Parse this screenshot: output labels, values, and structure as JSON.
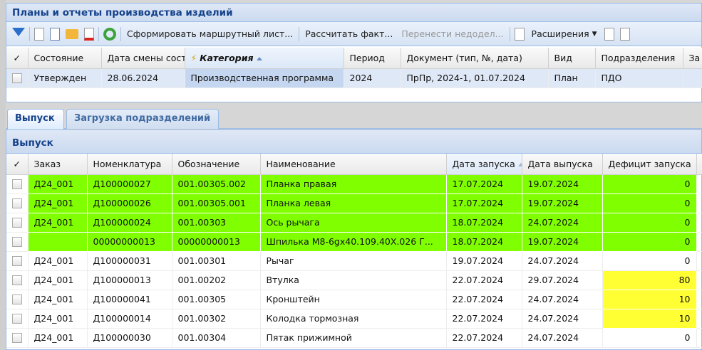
{
  "plans": {
    "title": "Планы и отчеты производства изделий",
    "toolbar": {
      "form_route": "Сформировать маршрутный лист...",
      "calc_fact": "Рассчитать факт...",
      "transfer": "Перенести недодел...",
      "extensions": "Расширения"
    },
    "columns": [
      "Состояние",
      "Дата смены сост",
      "Категория",
      "Период",
      "Документ (тип, №, дата)",
      "Вид",
      "Подразделения",
      "За"
    ],
    "rows": [
      {
        "state": "Утвержден",
        "date": "28.06.2024",
        "category": "Производственная программа",
        "period": "2024",
        "document": "ПрПр, 2024-1, 01.07.2024",
        "kind": "План",
        "dept": "ПДО",
        "extra": ""
      }
    ]
  },
  "tabs": [
    {
      "label": "Выпуск",
      "active": true
    },
    {
      "label": "Загрузка подразделений",
      "active": false
    }
  ],
  "output": {
    "title": "Выпуск",
    "columns": [
      "Заказ",
      "Номенклатура",
      "Обозначение",
      "Наименование",
      "Дата запуска",
      "Дата выпуска",
      "Дефицит запуска"
    ],
    "rows": [
      {
        "order": "Д24_001",
        "nom": "Д100000027",
        "code": "001.00305.002",
        "name": "Планка правая",
        "start": "17.07.2024",
        "release": "19.07.2024",
        "deficit": "0",
        "highlight": "green"
      },
      {
        "order": "Д24_001",
        "nom": "Д100000026",
        "code": "001.00305.001",
        "name": "Планка левая",
        "start": "17.07.2024",
        "release": "19.07.2024",
        "deficit": "0",
        "highlight": "green"
      },
      {
        "order": "Д24_001",
        "nom": "Д100000024",
        "code": "001.00303",
        "name": "Ось рычага",
        "start": "18.07.2024",
        "release": "24.07.2024",
        "deficit": "0",
        "highlight": "green"
      },
      {
        "order": "",
        "nom": "00000000013",
        "code": "00000000013",
        "name": "Шпилька М8-6gx40.109.40Х.026 Г...",
        "start": "18.07.2024",
        "release": "19.07.2024",
        "deficit": "0",
        "highlight": "green"
      },
      {
        "order": "Д24_001",
        "nom": "Д100000031",
        "code": "001.00301",
        "name": "Рычаг",
        "start": "19.07.2024",
        "release": "24.07.2024",
        "deficit": "0",
        "highlight": ""
      },
      {
        "order": "Д24_001",
        "nom": "Д100000013",
        "code": "001.00202",
        "name": "Втулка",
        "start": "22.07.2024",
        "release": "29.07.2024",
        "deficit": "80",
        "highlight": "yellow"
      },
      {
        "order": "Д24_001",
        "nom": "Д100000041",
        "code": "001.00305",
        "name": "Кронштейн",
        "start": "22.07.2024",
        "release": "24.07.2024",
        "deficit": "10",
        "highlight": "yellow"
      },
      {
        "order": "Д24_001",
        "nom": "Д100000014",
        "code": "001.00302",
        "name": "Колодка тормозная",
        "start": "22.07.2024",
        "release": "24.07.2024",
        "deficit": "10",
        "highlight": "yellow"
      },
      {
        "order": "Д24_001",
        "nom": "Д100000030",
        "code": "001.00304",
        "name": "Пятак прижимной",
        "start": "22.07.2024",
        "release": "24.07.2024",
        "deficit": "0",
        "highlight": ""
      }
    ]
  },
  "colors": {
    "green": "#80ff00",
    "yellow": "#ffff33",
    "title": "#15428b"
  }
}
